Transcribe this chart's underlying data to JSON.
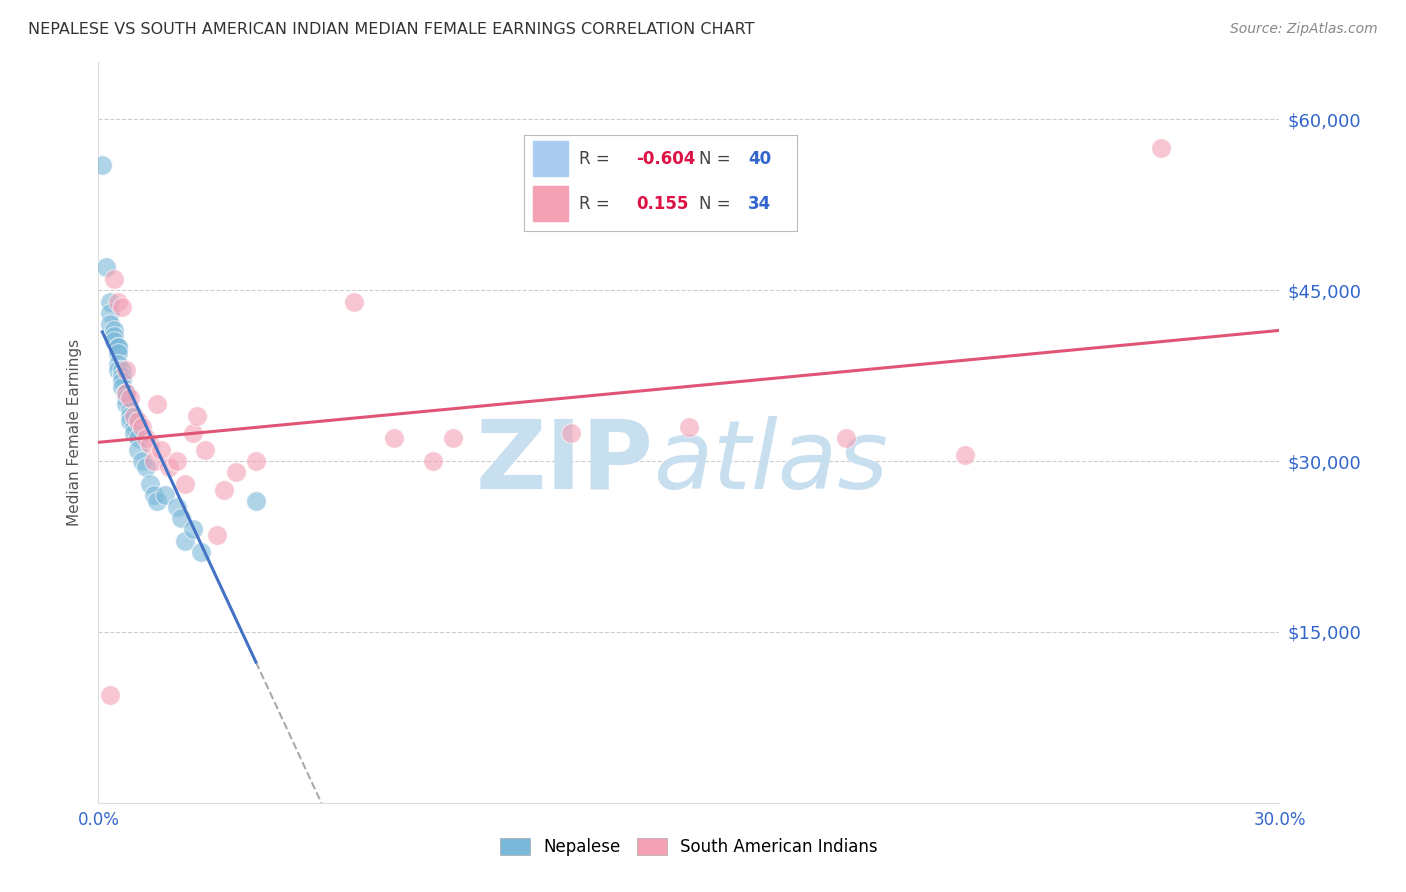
{
  "title": "NEPALESE VS SOUTH AMERICAN INDIAN MEDIAN FEMALE EARNINGS CORRELATION CHART",
  "source": "Source: ZipAtlas.com",
  "ylabel": "Median Female Earnings",
  "xlim": [
    0.0,
    0.3
  ],
  "ylim": [
    0,
    65000
  ],
  "yticks": [
    0,
    15000,
    30000,
    45000,
    60000
  ],
  "ytick_labels": [
    "",
    "$15,000",
    "$30,000",
    "$45,000",
    "$60,000"
  ],
  "xticks": [
    0.0,
    0.05,
    0.1,
    0.15,
    0.2,
    0.25,
    0.3
  ],
  "xtick_labels": [
    "0.0%",
    "",
    "",
    "",
    "",
    "",
    "30.0%"
  ],
  "nepalese_color": "#7ab8d9",
  "sai_color": "#f4a0b5",
  "line_color_nepalese": "#4472c4",
  "line_color_sai": "#e05575",
  "nepalese_R": -0.604,
  "nepalese_N": 40,
  "sai_R": 0.155,
  "sai_N": 34,
  "nepalese_x": [
    0.001,
    0.002,
    0.003,
    0.003,
    0.003,
    0.004,
    0.004,
    0.004,
    0.005,
    0.005,
    0.005,
    0.005,
    0.005,
    0.006,
    0.006,
    0.006,
    0.006,
    0.007,
    0.007,
    0.007,
    0.007,
    0.008,
    0.008,
    0.008,
    0.009,
    0.009,
    0.01,
    0.01,
    0.011,
    0.012,
    0.013,
    0.014,
    0.015,
    0.017,
    0.02,
    0.021,
    0.022,
    0.024,
    0.026,
    0.04
  ],
  "nepalese_y": [
    56000,
    47000,
    44000,
    43000,
    42000,
    41500,
    41000,
    40500,
    40000,
    40000,
    39500,
    38500,
    38000,
    38000,
    37500,
    37000,
    36500,
    36000,
    36000,
    35500,
    35000,
    34500,
    34000,
    33500,
    33000,
    32500,
    32000,
    31000,
    30000,
    29500,
    28000,
    27000,
    26500,
    27000,
    26000,
    25000,
    23000,
    24000,
    22000,
    26500
  ],
  "sai_x": [
    0.003,
    0.004,
    0.005,
    0.006,
    0.007,
    0.007,
    0.008,
    0.009,
    0.01,
    0.011,
    0.012,
    0.013,
    0.014,
    0.015,
    0.016,
    0.018,
    0.02,
    0.022,
    0.024,
    0.025,
    0.027,
    0.03,
    0.032,
    0.035,
    0.04,
    0.065,
    0.075,
    0.085,
    0.09,
    0.12,
    0.15,
    0.19,
    0.22,
    0.27
  ],
  "sai_y": [
    9500,
    46000,
    44000,
    43500,
    38000,
    36000,
    35500,
    34000,
    33500,
    33000,
    32000,
    31500,
    30000,
    35000,
    31000,
    29500,
    30000,
    28000,
    32500,
    34000,
    31000,
    23500,
    27500,
    29000,
    30000,
    44000,
    32000,
    30000,
    32000,
    32500,
    33000,
    32000,
    30500,
    57500
  ]
}
